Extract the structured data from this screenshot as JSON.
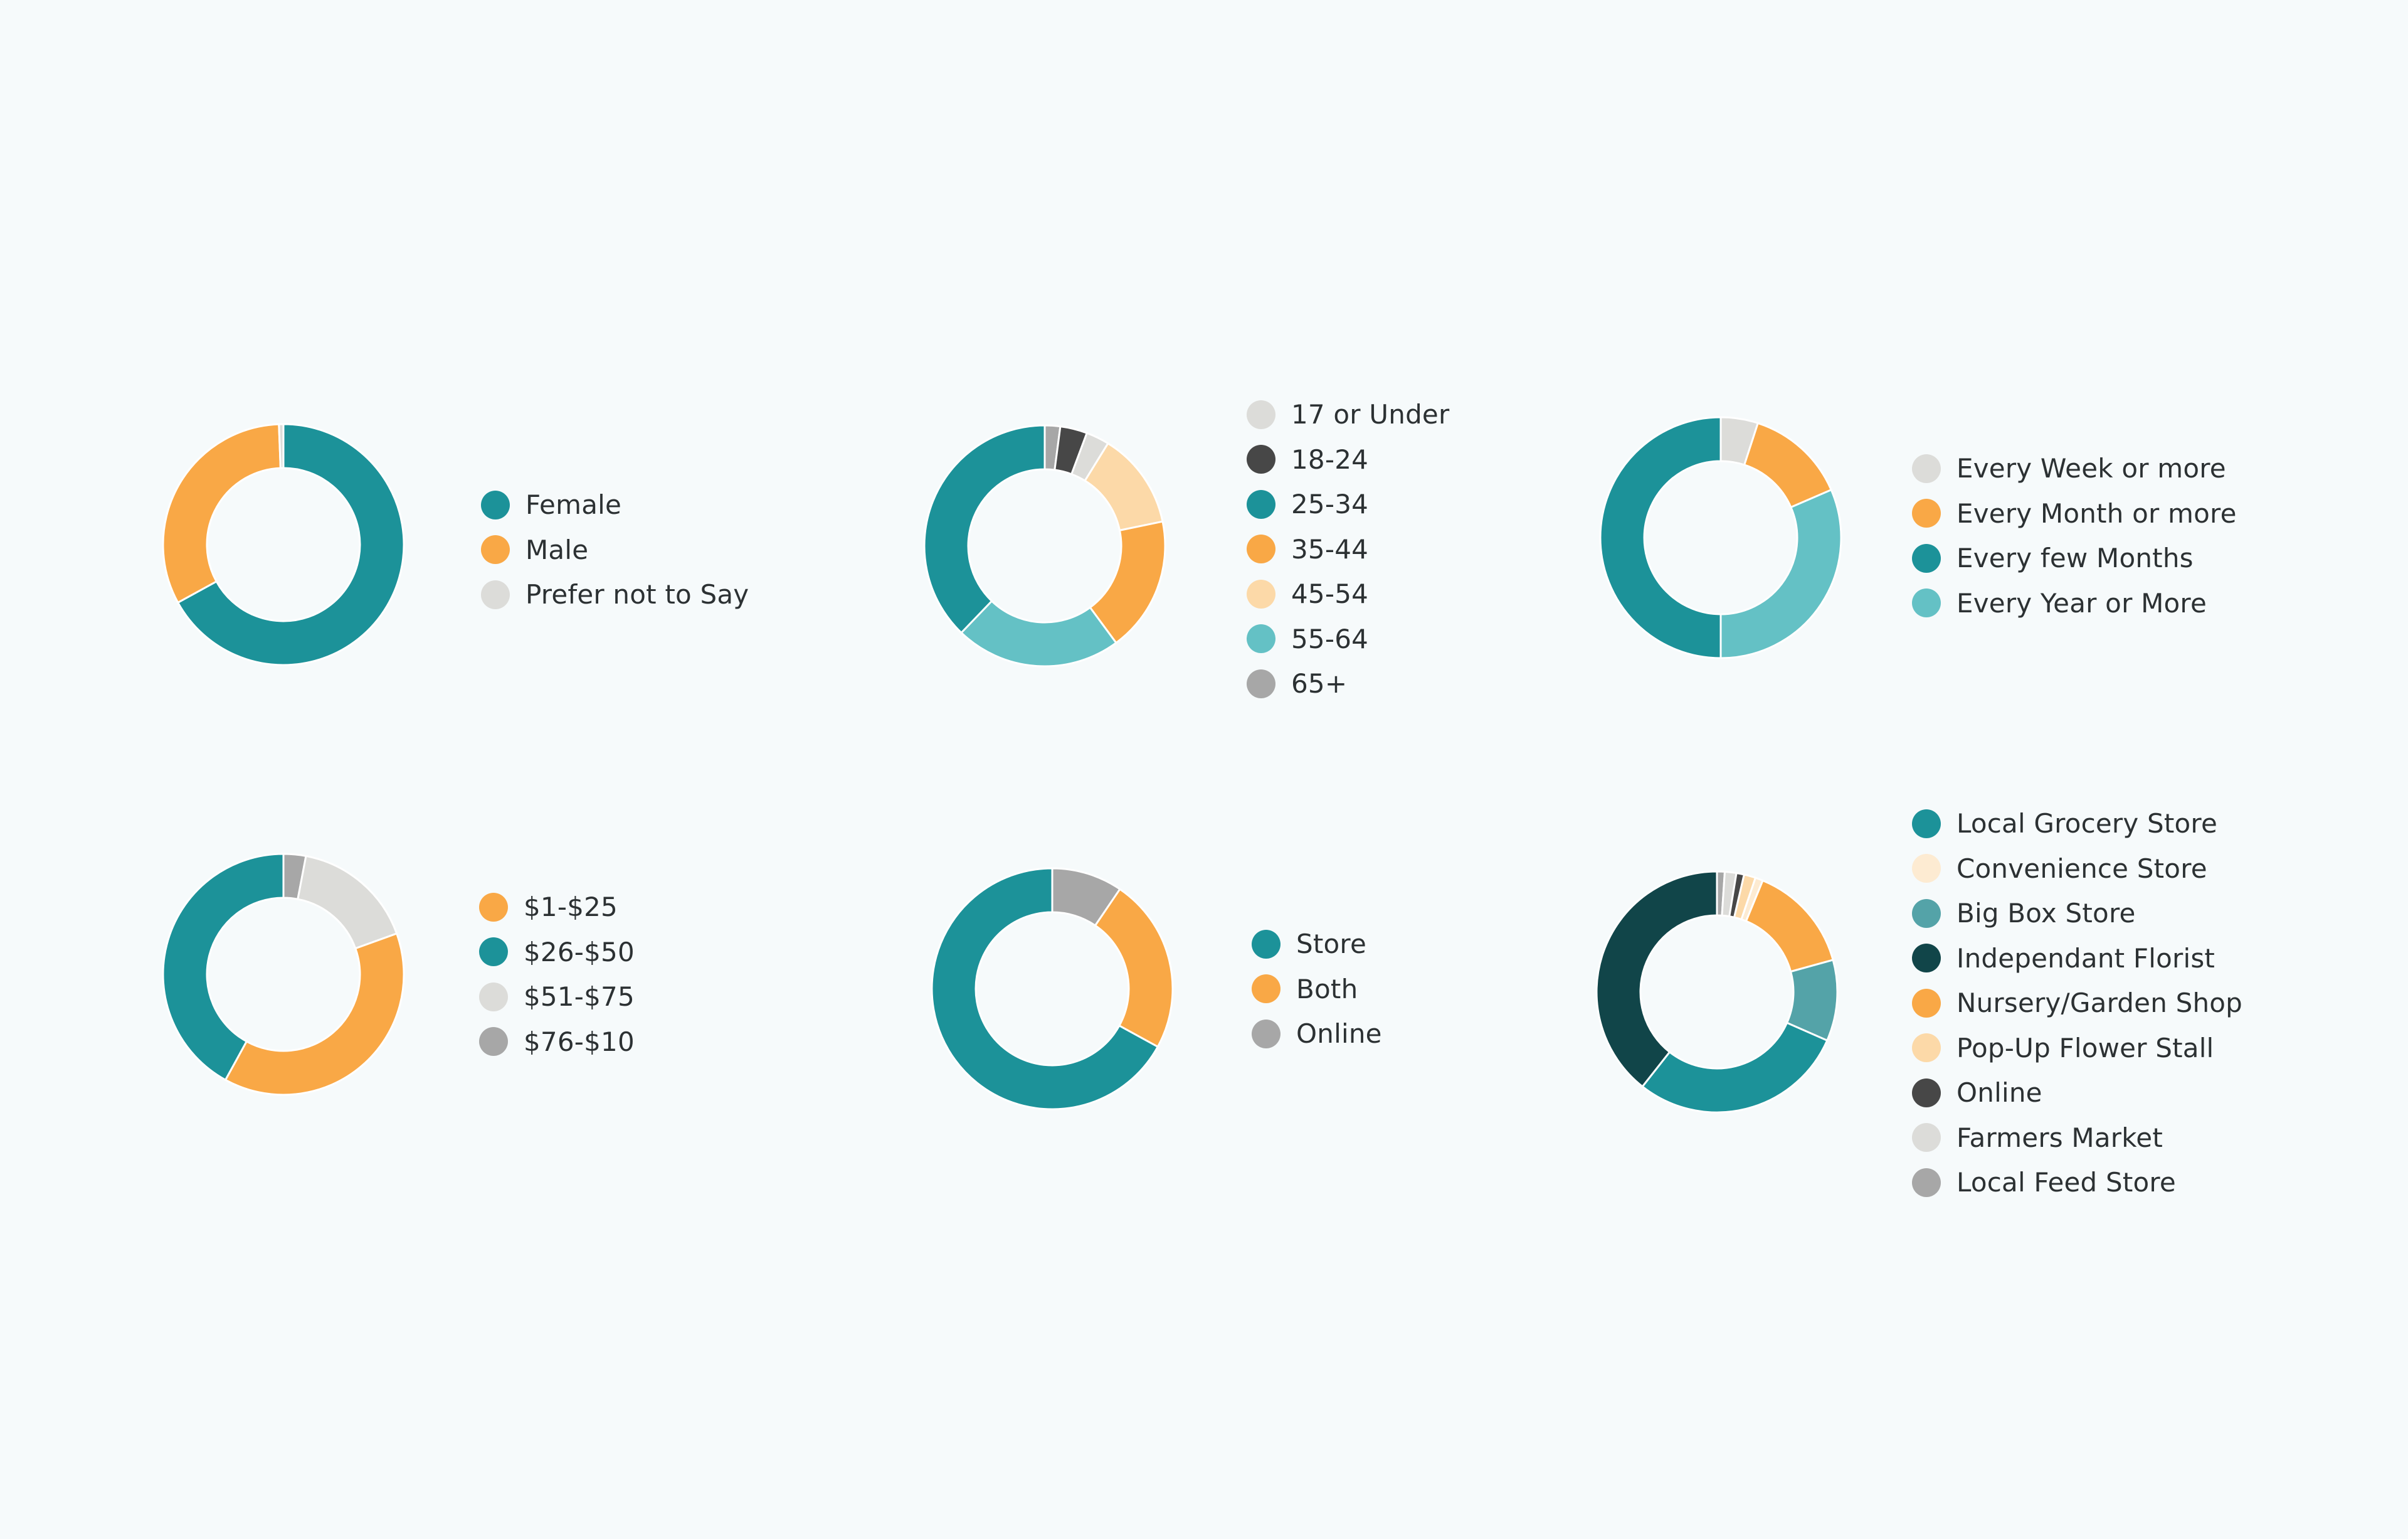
{
  "chart_data": [
    {
      "type": "pie",
      "variant": "donut",
      "categories": [
        "Female",
        "Male",
        "Prefer not to Say"
      ],
      "values": [
        67.0,
        32.4,
        0.6
      ],
      "colors": [
        "#1c9299",
        "#f9a846",
        "#dcdcd9"
      ]
    },
    {
      "type": "pie",
      "variant": "donut",
      "categories": [
        "17 or Under",
        "18-24",
        "25-34",
        "35-44",
        "45-54",
        "55-64",
        "65+"
      ],
      "values": [
        3.0,
        3.5,
        36.5,
        17.5,
        12.5,
        21.5,
        2.0
      ],
      "colors": [
        "#dcdcd9",
        "#474747",
        "#1c9299",
        "#f9a846",
        "#fcd9a8",
        "#64c1c5",
        "#a7a7a7"
      ],
      "slice_order": [
        6,
        1,
        0,
        4,
        3,
        5,
        2
      ]
    },
    {
      "type": "pie",
      "variant": "donut",
      "categories": [
        "Every Week or more",
        "Every Month or more",
        "Every few Months",
        "Every Year or More"
      ],
      "values": [
        5.0,
        13.5,
        50.0,
        31.5
      ],
      "colors": [
        "#dcdcd9",
        "#f9a846",
        "#1c9299",
        "#64c1c5"
      ],
      "slice_order": [
        0,
        1,
        3,
        2
      ]
    },
    {
      "type": "pie",
      "variant": "donut",
      "categories": [
        "$1-$25",
        "$26-$50",
        "$51-$75",
        "$76-$10"
      ],
      "values": [
        38.5,
        42.0,
        16.5,
        3.0
      ],
      "colors": [
        "#f9a846",
        "#1c9299",
        "#dcdcd9",
        "#a7a7a7"
      ],
      "slice_order": [
        3,
        2,
        0,
        1
      ]
    },
    {
      "type": "pie",
      "variant": "donut",
      "categories": [
        "Store",
        "Both",
        "Online"
      ],
      "values": [
        67.0,
        23.5,
        9.5
      ],
      "colors": [
        "#1c9299",
        "#f9a846",
        "#a7a7a7"
      ],
      "slice_order": [
        2,
        1,
        0
      ]
    },
    {
      "type": "pie",
      "variant": "donut",
      "categories": [
        "Local Grocery Store",
        "Convenience Store",
        "Big Box Store",
        "Independant Florist",
        "Nursery/Garden Shop",
        "Pop-Up Flower Stall",
        "Online",
        "Farmers Market",
        "Local Feed Store"
      ],
      "values": [
        28.0,
        1.0,
        10.5,
        38.0,
        14.0,
        1.5,
        1.0,
        1.5,
        1.0
      ],
      "colors": [
        "#1c9299",
        "#fdebd2",
        "#54a3a8",
        "#114549",
        "#f9a846",
        "#fcd9a8",
        "#474747",
        "#dcdcd9",
        "#a7a7a7"
      ],
      "slice_order": [
        8,
        7,
        6,
        5,
        1,
        4,
        2,
        0,
        3
      ]
    }
  ]
}
